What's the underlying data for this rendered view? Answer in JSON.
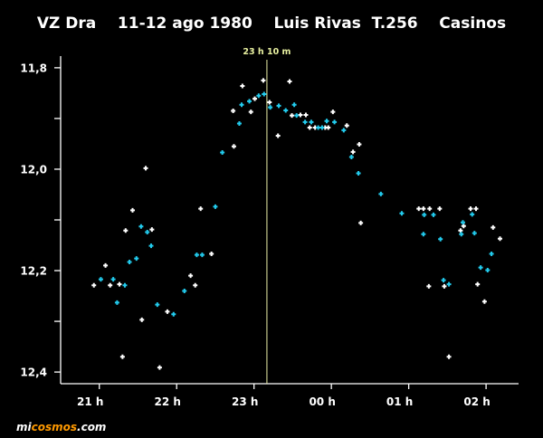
{
  "chart_data": {
    "type": "scatter",
    "title": "VZ Dra    11-12 ago 1980    Luis Rivas  T.256    Casinos",
    "xlabel": "",
    "ylabel": "",
    "xlim": [
      20.5,
      26.42
    ],
    "ylim": [
      11.777,
      12.423
    ],
    "y_inverted": true,
    "grid": false,
    "x_ticks": [
      {
        "value": 21,
        "label": "21 h"
      },
      {
        "value": 22,
        "label": "22 h"
      },
      {
        "value": 23,
        "label": "23 h"
      },
      {
        "value": 24,
        "label": "00 h"
      },
      {
        "value": 25,
        "label": "01 h"
      },
      {
        "value": 26,
        "label": "02 h"
      }
    ],
    "y_ticks": [
      {
        "value": 11.8,
        "label": "11,8"
      },
      {
        "value": 12.0,
        "label": "12,0"
      },
      {
        "value": 12.2,
        "label": "12,2"
      },
      {
        "value": 12.4,
        "label": "12,4"
      }
    ],
    "y_minor_ticks": [
      11.9,
      12.1,
      12.3
    ],
    "annotation": {
      "x": 23.1667,
      "label": "23 h 10 m",
      "color": "#eef2a8"
    },
    "series": [
      {
        "name": "white",
        "color": "#ffffff",
        "points": [
          [
            21.6,
            11.998
          ],
          [
            21.43,
            12.081
          ],
          [
            22.31,
            12.078
          ],
          [
            21.68,
            12.119
          ],
          [
            21.34,
            12.121
          ],
          [
            22.45,
            12.167
          ],
          [
            21.08,
            12.19
          ],
          [
            22.18,
            12.21
          ],
          [
            22.24,
            12.229
          ],
          [
            20.93,
            12.229
          ],
          [
            21.14,
            12.229
          ],
          [
            21.26,
            12.227
          ],
          [
            21.88,
            12.281
          ],
          [
            21.55,
            12.297
          ],
          [
            21.3,
            12.37
          ],
          [
            21.78,
            12.391
          ],
          [
            23.12,
            11.825
          ],
          [
            22.85,
            11.836
          ],
          [
            23.46,
            11.827
          ],
          [
            23.01,
            11.861
          ],
          [
            23.2,
            11.868
          ],
          [
            22.73,
            11.885
          ],
          [
            22.96,
            11.887
          ],
          [
            23.49,
            11.894
          ],
          [
            23.6,
            11.893
          ],
          [
            23.67,
            11.893
          ],
          [
            24.02,
            11.887
          ],
          [
            23.72,
            11.918
          ],
          [
            23.79,
            11.918
          ],
          [
            23.92,
            11.918
          ],
          [
            23.96,
            11.918
          ],
          [
            24.2,
            11.914
          ],
          [
            23.31,
            11.934
          ],
          [
            22.74,
            11.955
          ],
          [
            24.36,
            11.951
          ],
          [
            24.28,
            11.966
          ],
          [
            24.38,
            12.106
          ],
          [
            25.13,
            12.078
          ],
          [
            25.19,
            12.078
          ],
          [
            25.27,
            12.078
          ],
          [
            25.4,
            12.078
          ],
          [
            25.8,
            12.078
          ],
          [
            25.87,
            12.078
          ],
          [
            25.71,
            12.112
          ],
          [
            25.67,
            12.121
          ],
          [
            26.09,
            12.115
          ],
          [
            26.18,
            12.137
          ],
          [
            25.26,
            12.231
          ],
          [
            25.46,
            12.231
          ],
          [
            25.89,
            12.227
          ],
          [
            25.98,
            12.261
          ],
          [
            25.52,
            12.37
          ]
        ]
      },
      {
        "name": "cyan",
        "color": "#22ccee",
        "points": [
          [
            22.59,
            11.967
          ],
          [
            22.5,
            12.074
          ],
          [
            21.54,
            12.113
          ],
          [
            21.62,
            12.124
          ],
          [
            21.67,
            12.151
          ],
          [
            21.39,
            12.183
          ],
          [
            21.48,
            12.176
          ],
          [
            22.26,
            12.169
          ],
          [
            22.33,
            12.169
          ],
          [
            21.02,
            12.217
          ],
          [
            21.18,
            12.217
          ],
          [
            21.33,
            12.229
          ],
          [
            21.23,
            12.263
          ],
          [
            22.1,
            12.24
          ],
          [
            21.75,
            12.267
          ],
          [
            21.96,
            12.286
          ],
          [
            23.13,
            11.852
          ],
          [
            23.06,
            11.855
          ],
          [
            22.94,
            11.866
          ],
          [
            22.84,
            11.873
          ],
          [
            23.21,
            11.878
          ],
          [
            23.32,
            11.875
          ],
          [
            23.52,
            11.873
          ],
          [
            23.41,
            11.884
          ],
          [
            22.81,
            11.91
          ],
          [
            23.55,
            11.894
          ],
          [
            23.66,
            11.907
          ],
          [
            23.74,
            11.907
          ],
          [
            23.94,
            11.905
          ],
          [
            24.04,
            11.907
          ],
          [
            23.83,
            11.918
          ],
          [
            23.88,
            11.918
          ],
          [
            24.16,
            11.923
          ],
          [
            24.26,
            11.976
          ],
          [
            24.35,
            12.008
          ],
          [
            24.64,
            12.049
          ],
          [
            24.91,
            12.087
          ],
          [
            25.2,
            12.09
          ],
          [
            25.32,
            12.09
          ],
          [
            25.82,
            12.089
          ],
          [
            25.7,
            12.105
          ],
          [
            25.68,
            12.128
          ],
          [
            25.85,
            12.126
          ],
          [
            25.19,
            12.128
          ],
          [
            25.41,
            12.138
          ],
          [
            26.07,
            12.167
          ],
          [
            25.93,
            12.194
          ],
          [
            26.02,
            12.199
          ],
          [
            25.45,
            12.219
          ],
          [
            25.52,
            12.227
          ]
        ]
      }
    ]
  },
  "footer": {
    "logo_prefix": "mi",
    "logo_main": "cosmos",
    "logo_suffix": ".com",
    "logo_accent": "#ff9900"
  }
}
